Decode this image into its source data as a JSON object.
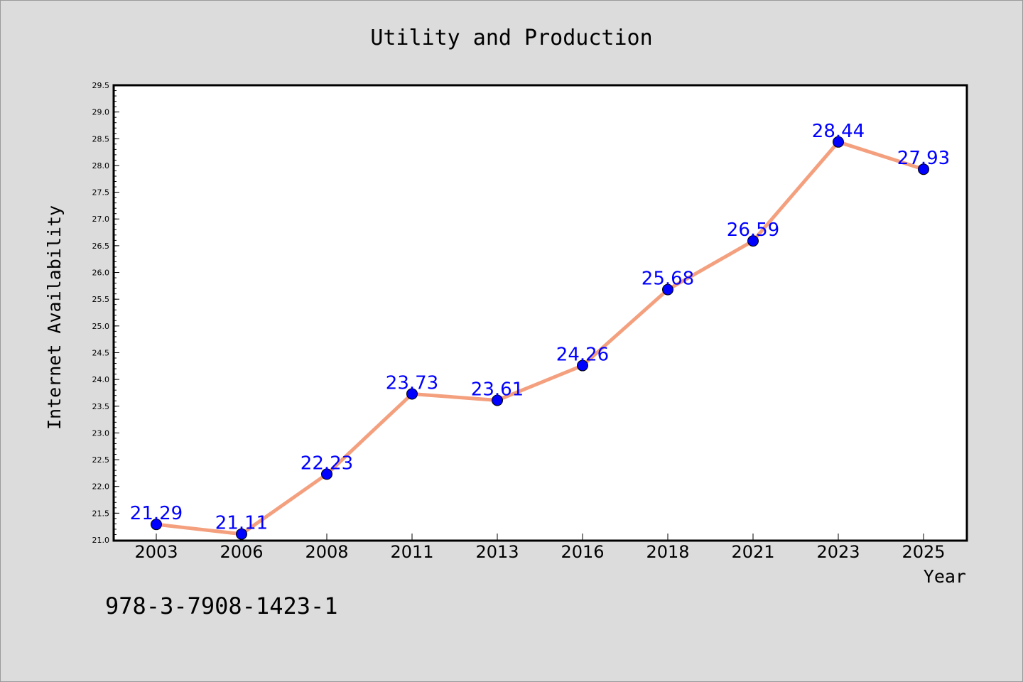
{
  "chart_data": {
    "type": "line",
    "title": "Utility and Production",
    "xlabel": "Year",
    "ylabel": "Internet Availability",
    "categories": [
      "2003",
      "2006",
      "2008",
      "2011",
      "2013",
      "2016",
      "2018",
      "2021",
      "2023",
      "2025"
    ],
    "series": [
      {
        "values": [
          21.29,
          21.11,
          22.23,
          23.73,
          23.61,
          24.26,
          25.68,
          26.59,
          28.44,
          27.93
        ],
        "labels": [
          "21.29",
          "21.11",
          "22.23",
          "23.73",
          "23.61",
          "24.26",
          "25.68",
          "26.59",
          "28.44",
          "27.93"
        ]
      }
    ],
    "ylim": [
      21.0,
      29.5
    ],
    "yticks": [
      "21.0",
      "21.5",
      "22.0",
      "22.5",
      "23.0",
      "23.5",
      "24.0",
      "24.5",
      "25.0",
      "25.5",
      "26.0",
      "26.5",
      "27.0",
      "27.5",
      "28.0",
      "28.5",
      "29.0",
      "29.5"
    ],
    "grid": false,
    "colors": {
      "background": "#dcdcdc",
      "plot_background": "#ffffff",
      "line": "#f4a07e",
      "marker": "#0000ff",
      "label": "#0000ff"
    }
  },
  "footnote": "978-3-7908-1423-1"
}
